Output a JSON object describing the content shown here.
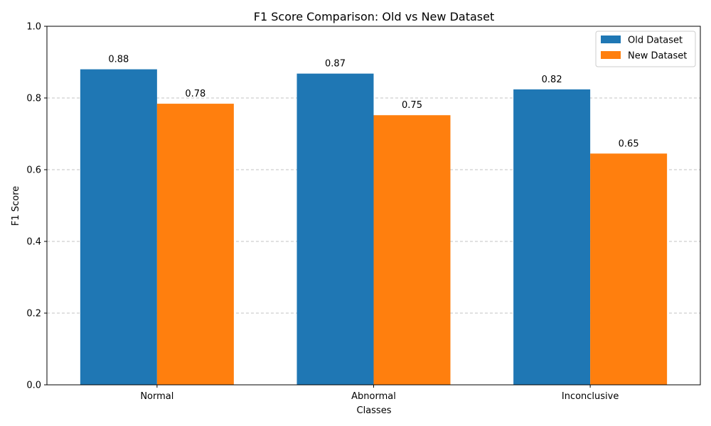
{
  "chart_data": {
    "type": "bar",
    "title": "F1 Score Comparison: Old vs New Dataset",
    "xlabel": "Classes",
    "ylabel": "F1 Score",
    "categories": [
      "Normal",
      "Abnormal",
      "Inconclusive"
    ],
    "series": [
      {
        "name": "Old Dataset",
        "values": [
          0.88,
          0.868,
          0.824
        ],
        "labels": [
          "0.88",
          "0.87",
          "0.82"
        ],
        "color": "#1f77b4"
      },
      {
        "name": "New Dataset",
        "values": [
          0.784,
          0.752,
          0.645
        ],
        "labels": [
          "0.78",
          "0.75",
          "0.65"
        ],
        "color": "#ff7f0e"
      }
    ],
    "ylim": [
      0,
      1.0
    ],
    "yticks": [
      "0.0",
      "0.2",
      "0.4",
      "0.6",
      "0.8",
      "1.0"
    ],
    "grid": "y-dashed",
    "legend_position": "top-right"
  }
}
